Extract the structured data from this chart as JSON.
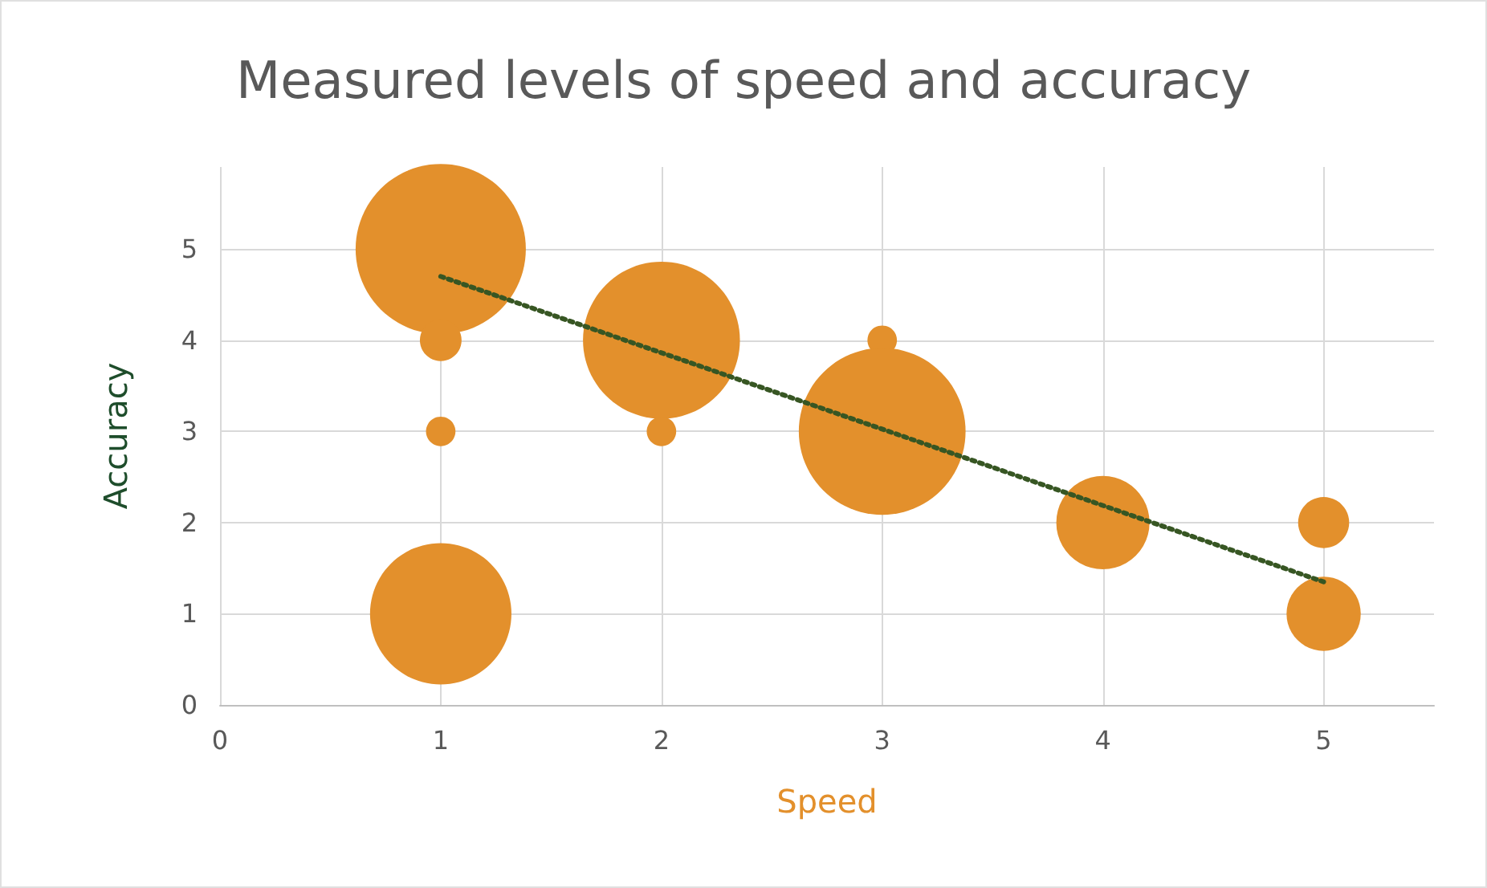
{
  "chart_data": {
    "type": "bubble",
    "title": "Measured levels of speed and accuracy",
    "xlabel": "Speed",
    "ylabel": "Accuracy",
    "xlim": [
      0,
      5.5
    ],
    "xticks": [
      0,
      1,
      2,
      3,
      4,
      5
    ],
    "ylim": [
      0,
      5.9
    ],
    "yticks": [
      0,
      1,
      2,
      3,
      4,
      5
    ],
    "grid": true,
    "series": [
      {
        "color": "#e3902c",
        "x": [
          1,
          1,
          1,
          1,
          2,
          2,
          3,
          3,
          4,
          5,
          5
        ],
        "values": [
          5,
          4,
          3,
          1,
          4,
          3,
          4,
          3,
          2,
          2,
          1
        ],
        "sizes": [
          1,
          0.06,
          0.03,
          0.69,
          0.85,
          0.03,
          0.03,
          0.96,
          0.3,
          0.09,
          0.19
        ]
      },
      {
        "type": "line",
        "color": "#375623",
        "x": [
          1,
          5
        ],
        "values": [
          4.7,
          1.35
        ],
        "line_style": "dotted",
        "marker": "none"
      }
    ]
  }
}
